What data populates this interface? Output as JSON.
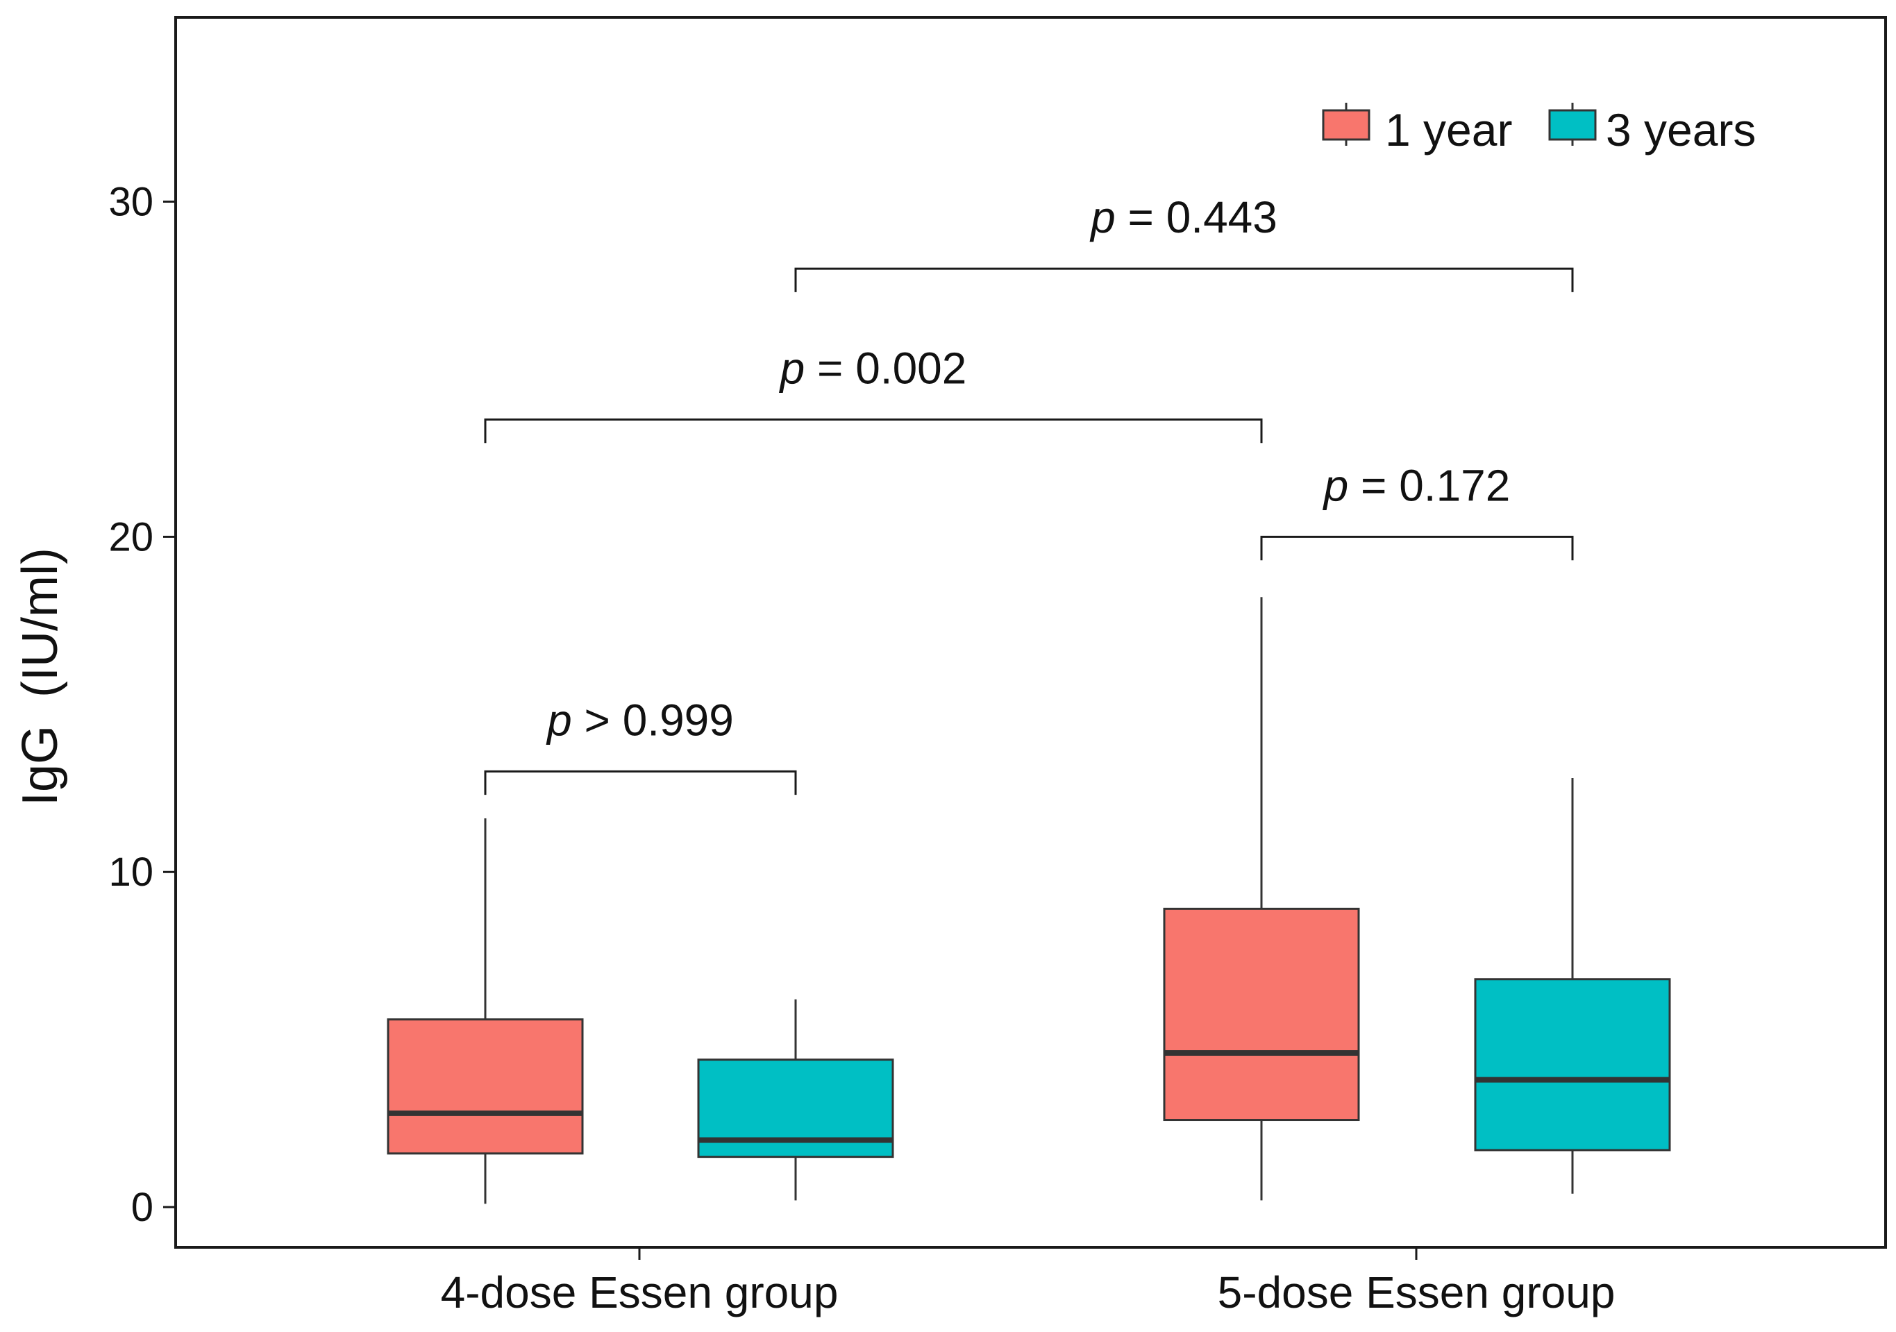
{
  "chart_data": {
    "type": "boxplot",
    "title": "",
    "xlabel": "",
    "ylabel": "IgG  (IU/ml)",
    "ylim": [
      -1.2,
      35.5
    ],
    "yticks": [
      0,
      10,
      20,
      30
    ],
    "categories": [
      "4-dose Essen group",
      "5-dose Essen group"
    ],
    "series": [
      {
        "name": "1 year",
        "color": "#F8766D",
        "boxes": [
          {
            "min": 0.1,
            "q1": 1.6,
            "median": 2.8,
            "q3": 5.6,
            "max": 11.6
          },
          {
            "min": 0.2,
            "q1": 2.6,
            "median": 4.6,
            "q3": 8.9,
            "max": 18.2
          }
        ]
      },
      {
        "name": "3 years",
        "color": "#00BFC4",
        "boxes": [
          {
            "min": 0.2,
            "q1": 1.5,
            "median": 2.0,
            "q3": 4.4,
            "max": 6.2
          },
          {
            "min": 0.4,
            "q1": 1.7,
            "median": 3.8,
            "q3": 6.8,
            "max": 12.8
          }
        ]
      }
    ],
    "legend": {
      "position": "top-right",
      "entries": [
        "1 year",
        "3 years"
      ]
    },
    "annotations": [
      {
        "label_prefix": "p",
        "label": " > 0.999",
        "from": {
          "category": 0,
          "series": 0
        },
        "to": {
          "category": 0,
          "series": 1
        },
        "y": 13.0,
        "drop": 0.7
      },
      {
        "label_prefix": "p",
        "label": " = 0.002",
        "from": {
          "category": 0,
          "series": 0
        },
        "to": {
          "category": 1,
          "series": 0
        },
        "y": 23.5,
        "drop": 0.7
      },
      {
        "label_prefix": "p",
        "label": " = 0.172",
        "from": {
          "category": 1,
          "series": 0
        },
        "to": {
          "category": 1,
          "series": 1
        },
        "y": 20.0,
        "drop": 0.7
      },
      {
        "label_prefix": "p",
        "label": " = 0.443",
        "from": {
          "category": 0,
          "series": 1
        },
        "to": {
          "category": 1,
          "series": 1
        },
        "y": 28.0,
        "drop": 0.7
      }
    ],
    "grid": false
  }
}
